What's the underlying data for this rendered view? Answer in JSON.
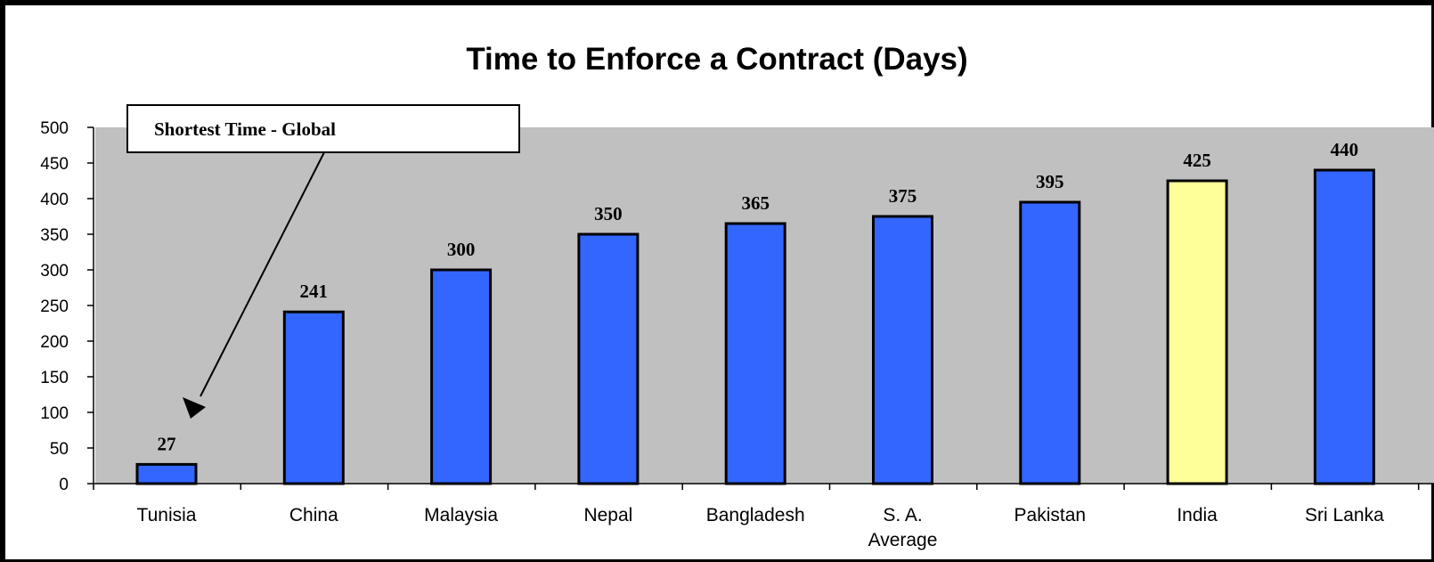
{
  "chart_data": {
    "type": "bar",
    "title": "Time to Enforce a Contract (Days)",
    "xlabel": "",
    "ylabel": "",
    "categories": [
      "Tunisia",
      "China",
      "Malaysia",
      "Nepal",
      "Bangladesh",
      "S. A. Average",
      "Pakistan",
      "India",
      "Sri Lanka"
    ],
    "category_lines": [
      [
        "Tunisia"
      ],
      [
        "China"
      ],
      [
        "Malaysia"
      ],
      [
        "Nepal"
      ],
      [
        "Bangladesh"
      ],
      [
        "S. A.",
        "Average"
      ],
      [
        "Pakistan"
      ],
      [
        "India"
      ],
      [
        "Sri Lanka"
      ]
    ],
    "values": [
      27,
      241,
      300,
      350,
      365,
      375,
      395,
      425,
      440
    ],
    "data_labels": [
      "27",
      "241",
      "300",
      "350",
      "365",
      "375",
      "395",
      "425",
      "440"
    ],
    "bar_colors": [
      "#3366ff",
      "#3366ff",
      "#3366ff",
      "#3366ff",
      "#3366ff",
      "#3366ff",
      "#3366ff",
      "#ffff99",
      "#3366ff"
    ],
    "ylim": [
      0,
      500
    ],
    "yticks": [
      0,
      50,
      100,
      150,
      200,
      250,
      300,
      350,
      400,
      450,
      500
    ],
    "grid": false,
    "plot_background": "#c0c0c0",
    "annotation": {
      "text": "Shortest Time - Global",
      "points_to": "Tunisia"
    }
  }
}
